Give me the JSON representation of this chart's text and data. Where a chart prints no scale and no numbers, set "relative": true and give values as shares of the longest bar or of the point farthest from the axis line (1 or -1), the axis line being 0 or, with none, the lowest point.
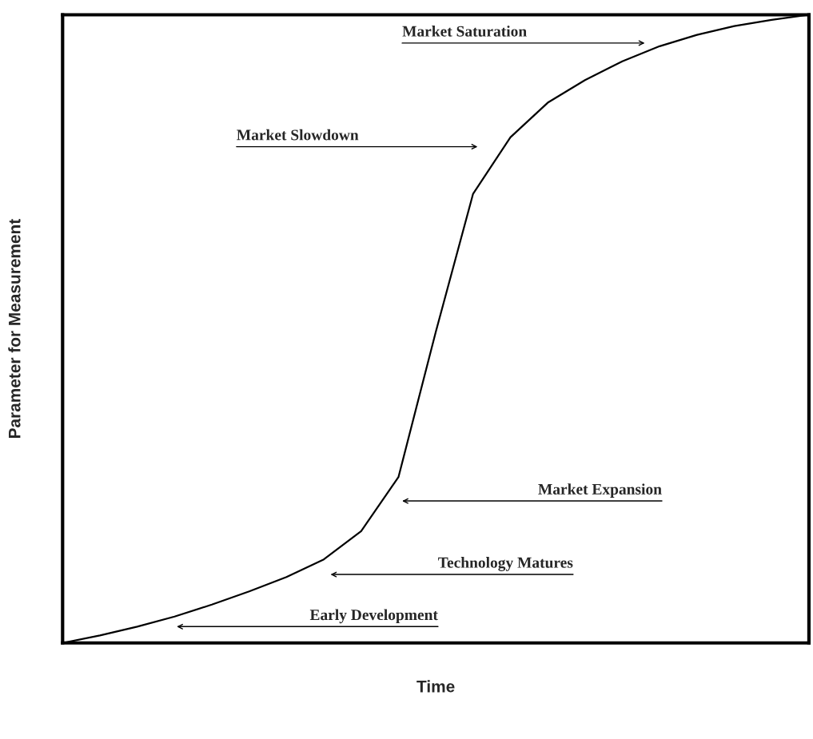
{
  "chart_data": {
    "type": "line",
    "relative": true,
    "xlabel": "Time",
    "ylabel": "Parameter for Measurement",
    "categories": [
      null,
      null,
      null,
      null,
      null,
      null,
      null,
      null,
      null,
      null,
      null,
      null,
      null,
      null,
      null,
      null,
      null,
      null,
      null,
      null,
      null
    ],
    "series": [
      {
        "color": "#000000",
        "values": [
          0,
          0.012,
          0.026,
          0.042,
          0.061,
          0.082,
          0.105,
          0.133,
          0.178,
          0.264,
          0.495,
          0.715,
          0.805,
          0.86,
          0.896,
          0.926,
          0.95,
          0.968,
          0.982,
          0.992,
          1.0
        ]
      }
    ],
    "annotations": [
      "Market Saturation",
      "Market Slowdown",
      "Market Expansion",
      "Technology Matures",
      "Early Development"
    ],
    "grid": false,
    "legend": false,
    "marker": "none",
    "line_style": "solid"
  }
}
